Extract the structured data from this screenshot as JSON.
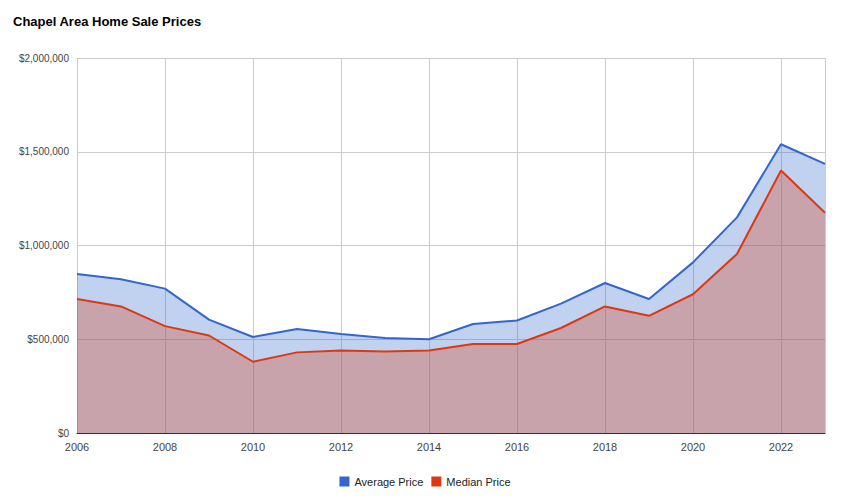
{
  "chart_data": {
    "type": "area",
    "title": "Chapel Area Home Sale Prices",
    "x": [
      2006,
      2007,
      2008,
      2009,
      2010,
      2011,
      2012,
      2013,
      2014,
      2015,
      2016,
      2017,
      2018,
      2019,
      2020,
      2021,
      2022,
      2023
    ],
    "series": [
      {
        "name": "Average Price",
        "color": "#3366cc",
        "values": [
          848000,
          820000,
          770000,
          605000,
          512000,
          555000,
          528000,
          507000,
          500000,
          581000,
          600000,
          690000,
          800000,
          715000,
          910000,
          1150000,
          1540000,
          1435000
        ]
      },
      {
        "name": "Median Price",
        "color": "#dc3912",
        "values": [
          715000,
          675000,
          570000,
          520000,
          380000,
          430000,
          440000,
          435000,
          440000,
          475000,
          475000,
          560000,
          675000,
          625000,
          740000,
          955000,
          1400000,
          1175000
        ]
      }
    ],
    "xlim": [
      2006,
      2023
    ],
    "xticks": [
      2006,
      2008,
      2010,
      2012,
      2014,
      2016,
      2018,
      2020,
      2022
    ],
    "ylim": [
      0,
      2000000
    ],
    "yticks": [
      {
        "value": 0,
        "label": "$0"
      },
      {
        "value": 500000,
        "label": "$500,000"
      },
      {
        "value": 1000000,
        "label": "$1,000,000"
      },
      {
        "value": 1500000,
        "label": "$1,500,000"
      },
      {
        "value": 2000000,
        "label": "$2,000,000"
      }
    ],
    "grid": true,
    "legend": "bottom"
  }
}
